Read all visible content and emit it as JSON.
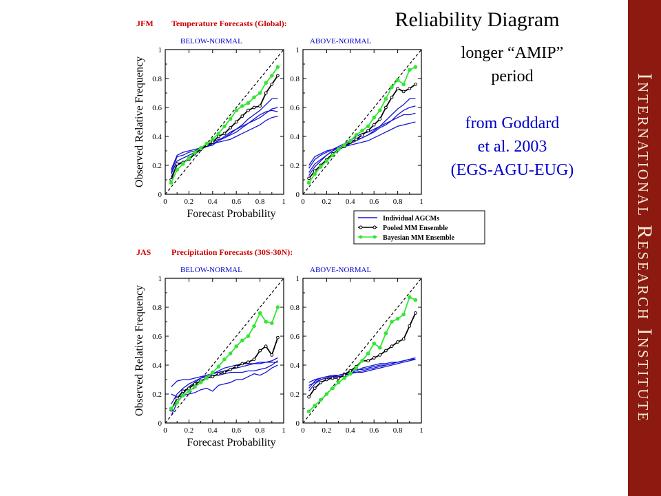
{
  "slide": {
    "title": "Reliability Diagram",
    "note_lines": [
      "longer “AMIP”",
      "period"
    ],
    "source_lines": [
      "from Goddard",
      "et al. 2003",
      "(EGS-AGU-EUG)"
    ],
    "sidebar": "International Research Institute"
  },
  "colors": {
    "individual": "#1414d2",
    "pooled": "#000000",
    "bayesian": "#33e633",
    "diag": "#000000",
    "header_red": "#cc0000",
    "panel_title": "#0000cc",
    "sidebar_bg": "#8c1a10",
    "sidebar_text": "#f2e6d6"
  },
  "legend": {
    "entries": [
      {
        "name": "Individual AGCMs",
        "style": "individual"
      },
      {
        "name": "Pooled MM Ensemble",
        "style": "pooled"
      },
      {
        "name": "Bayesian MM Ensemble",
        "style": "bayesian"
      }
    ]
  },
  "chart_data": [
    {
      "type": "line",
      "season": "JFM",
      "group_title": "Temperature Forecasts (Global):",
      "panel_title": "BELOW-NORMAL",
      "xlabel": "Forecast Probability",
      "ylabel": "Observed Relative Frequency",
      "xlim": [
        0,
        1
      ],
      "ylim": [
        0,
        1
      ],
      "xticks": [
        "0",
        "0.2",
        "0.4",
        "0.6",
        "0.8",
        "1"
      ],
      "yticks": [
        "0",
        "0.2",
        "0.4",
        "0.6",
        "0.8",
        "1"
      ],
      "diagonal": true,
      "x": [
        0.05,
        0.1,
        0.15,
        0.2,
        0.25,
        0.3,
        0.35,
        0.4,
        0.45,
        0.5,
        0.55,
        0.6,
        0.65,
        0.7,
        0.75,
        0.8,
        0.85,
        0.9,
        0.95
      ],
      "series": [
        {
          "name": "Bayesian MM Ensemble",
          "style": "bayesian",
          "values": [
            0.08,
            0.17,
            0.21,
            0.25,
            0.29,
            0.32,
            0.35,
            0.38,
            0.42,
            0.47,
            0.52,
            0.58,
            0.61,
            0.63,
            0.67,
            0.7,
            0.77,
            0.82,
            0.88
          ]
        },
        {
          "name": "Pooled MM Ensemble",
          "style": "pooled",
          "values": [
            0.1,
            0.21,
            0.22,
            0.24,
            0.28,
            0.31,
            0.34,
            0.36,
            0.4,
            0.42,
            0.46,
            0.5,
            0.54,
            0.58,
            0.6,
            0.61,
            0.7,
            0.76,
            0.82
          ]
        },
        {
          "style": "individual",
          "values": [
            0.17,
            0.27,
            0.29,
            0.3,
            0.31,
            0.32,
            0.33,
            0.35,
            0.37,
            0.39,
            0.42,
            0.45,
            0.48,
            0.52,
            0.55,
            0.58,
            0.62,
            0.66,
            0.66
          ]
        },
        {
          "style": "individual",
          "values": [
            0.14,
            0.23,
            0.25,
            0.27,
            0.29,
            0.31,
            0.33,
            0.34,
            0.37,
            0.4,
            0.43,
            0.45,
            0.47,
            0.49,
            0.51,
            0.53,
            0.56,
            0.59,
            0.6
          ]
        },
        {
          "style": "individual",
          "values": [
            0.12,
            0.2,
            0.22,
            0.25,
            0.28,
            0.31,
            0.34,
            0.36,
            0.38,
            0.39,
            0.41,
            0.43,
            0.46,
            0.49,
            0.52,
            0.55,
            0.57,
            0.58,
            0.57
          ]
        },
        {
          "style": "individual",
          "values": [
            0.15,
            0.26,
            0.27,
            0.29,
            0.3,
            0.32,
            0.34,
            0.35,
            0.36,
            0.37,
            0.38,
            0.4,
            0.42,
            0.44,
            0.46,
            0.48,
            0.51,
            0.53,
            0.54
          ]
        }
      ]
    },
    {
      "type": "line",
      "season": "JFM",
      "panel_title": "ABOVE-NORMAL",
      "xlim": [
        0,
        1
      ],
      "ylim": [
        0,
        1
      ],
      "xticks": [
        "0",
        "0.2",
        "0.4",
        "0.6",
        "0.8",
        "1"
      ],
      "yticks": [
        "0",
        "0.2",
        "0.4",
        "0.6",
        "0.8",
        "1"
      ],
      "diagonal": true,
      "x": [
        0.05,
        0.1,
        0.15,
        0.2,
        0.25,
        0.3,
        0.35,
        0.4,
        0.45,
        0.5,
        0.55,
        0.6,
        0.65,
        0.7,
        0.75,
        0.8,
        0.85,
        0.9,
        0.95
      ],
      "series": [
        {
          "name": "Bayesian MM Ensemble",
          "style": "bayesian",
          "values": [
            0.08,
            0.14,
            0.19,
            0.23,
            0.27,
            0.31,
            0.34,
            0.37,
            0.41,
            0.44,
            0.47,
            0.53,
            0.58,
            0.66,
            0.74,
            0.79,
            0.76,
            0.86,
            0.88
          ]
        },
        {
          "name": "Pooled MM Ensemble",
          "style": "pooled",
          "values": [
            0.11,
            0.16,
            0.2,
            0.24,
            0.28,
            0.31,
            0.33,
            0.36,
            0.38,
            0.41,
            0.44,
            0.48,
            0.52,
            0.6,
            0.67,
            0.73,
            0.71,
            0.73,
            0.76
          ]
        },
        {
          "style": "individual",
          "values": [
            0.18,
            0.24,
            0.27,
            0.29,
            0.31,
            0.32,
            0.34,
            0.36,
            0.38,
            0.39,
            0.41,
            0.44,
            0.47,
            0.51,
            0.55,
            0.59,
            0.62,
            0.66,
            0.66
          ]
        },
        {
          "style": "individual",
          "values": [
            0.15,
            0.21,
            0.24,
            0.27,
            0.3,
            0.32,
            0.33,
            0.35,
            0.37,
            0.39,
            0.41,
            0.43,
            0.46,
            0.48,
            0.51,
            0.55,
            0.58,
            0.6,
            0.61
          ]
        },
        {
          "style": "individual",
          "values": [
            0.13,
            0.19,
            0.23,
            0.27,
            0.3,
            0.32,
            0.33,
            0.34,
            0.35,
            0.36,
            0.37,
            0.39,
            0.41,
            0.43,
            0.45,
            0.47,
            0.48,
            0.49,
            0.5
          ]
        },
        {
          "style": "individual",
          "values": [
            0.2,
            0.26,
            0.28,
            0.3,
            0.31,
            0.33,
            0.35,
            0.37,
            0.4,
            0.42,
            0.43,
            0.45,
            0.47,
            0.49,
            0.51,
            0.53,
            0.55,
            0.55,
            0.56
          ]
        }
      ]
    },
    {
      "type": "line",
      "season": "JAS",
      "group_title": "Precipitation Forecasts (30S-30N):",
      "panel_title": "BELOW-NORMAL",
      "xlabel": "Forecast Probability",
      "ylabel": "Observed Relative Frequency",
      "xlim": [
        0,
        1
      ],
      "ylim": [
        0,
        1
      ],
      "xticks": [
        "0",
        "0.2",
        "0.4",
        "0.6",
        "0.8",
        "1"
      ],
      "yticks": [
        "0",
        "0.2",
        "0.4",
        "0.6",
        "0.8",
        "1"
      ],
      "diagonal": true,
      "x": [
        0.05,
        0.1,
        0.15,
        0.2,
        0.25,
        0.3,
        0.35,
        0.4,
        0.45,
        0.5,
        0.55,
        0.6,
        0.65,
        0.7,
        0.75,
        0.8,
        0.85,
        0.9,
        0.95
      ],
      "series": [
        {
          "name": "Bayesian MM Ensemble",
          "style": "bayesian",
          "values": [
            0.1,
            0.14,
            0.19,
            0.22,
            0.25,
            0.28,
            0.31,
            0.35,
            0.39,
            0.44,
            0.48,
            0.53,
            0.57,
            0.6,
            0.67,
            0.76,
            0.7,
            0.69,
            0.8
          ]
        },
        {
          "name": "Pooled MM Ensemble",
          "style": "pooled",
          "values": [
            0.09,
            0.17,
            0.22,
            0.24,
            0.27,
            0.29,
            0.31,
            0.32,
            0.34,
            0.35,
            0.37,
            0.39,
            0.41,
            0.42,
            0.44,
            0.5,
            0.53,
            0.47,
            0.59
          ]
        },
        {
          "style": "individual",
          "values": [
            0.25,
            0.29,
            0.3,
            0.3,
            0.31,
            0.32,
            0.33,
            0.34,
            0.35,
            0.36,
            0.37,
            0.38,
            0.39,
            0.4,
            0.41,
            0.41,
            0.42,
            0.43,
            0.45
          ]
        },
        {
          "style": "individual",
          "values": [
            0.05,
            0.14,
            0.2,
            0.25,
            0.28,
            0.31,
            0.33,
            0.34,
            0.36,
            0.38,
            0.39,
            0.4,
            0.41,
            0.41,
            0.41,
            0.42,
            0.42,
            0.42,
            0.42
          ]
        },
        {
          "style": "individual",
          "values": [
            0.2,
            0.18,
            0.19,
            0.2,
            0.21,
            0.23,
            0.24,
            0.22,
            0.26,
            0.27,
            0.28,
            0.3,
            0.3,
            0.32,
            0.34,
            0.33,
            0.35,
            0.38,
            0.4
          ]
        },
        {
          "style": "individual",
          "values": [
            0.13,
            0.2,
            0.24,
            0.27,
            0.29,
            0.31,
            0.32,
            0.33,
            0.33,
            0.34,
            0.35,
            0.35,
            0.35,
            0.36,
            0.36,
            0.37,
            0.38,
            0.4,
            0.43
          ]
        }
      ]
    },
    {
      "type": "line",
      "season": "JAS",
      "panel_title": "ABOVE-NORMAL",
      "xlim": [
        0,
        1
      ],
      "ylim": [
        0,
        1
      ],
      "xticks": [
        "0",
        "0.2",
        "0.4",
        "0.6",
        "0.8",
        "1"
      ],
      "yticks": [
        "0",
        "0.2",
        "0.4",
        "0.6",
        "0.8",
        "1"
      ],
      "diagonal": true,
      "x": [
        0.05,
        0.1,
        0.15,
        0.2,
        0.25,
        0.3,
        0.35,
        0.4,
        0.45,
        0.5,
        0.55,
        0.6,
        0.65,
        0.7,
        0.75,
        0.8,
        0.85,
        0.9,
        0.95
      ],
      "series": [
        {
          "name": "Bayesian MM Ensemble",
          "style": "bayesian",
          "values": [
            0.08,
            0.12,
            0.16,
            0.2,
            0.24,
            0.28,
            0.31,
            0.34,
            0.38,
            0.43,
            0.48,
            0.55,
            0.52,
            0.62,
            0.7,
            0.72,
            0.75,
            0.87,
            0.85
          ]
        },
        {
          "name": "Pooled MM Ensemble",
          "style": "pooled",
          "values": [
            0.18,
            0.24,
            0.28,
            0.3,
            0.31,
            0.31,
            0.33,
            0.36,
            0.39,
            0.43,
            0.43,
            0.45,
            0.47,
            0.5,
            0.53,
            0.56,
            0.58,
            0.67,
            0.76
          ]
        },
        {
          "style": "individual",
          "values": [
            0.26,
            0.28,
            0.3,
            0.31,
            0.32,
            0.32,
            0.33,
            0.34,
            0.35,
            0.36,
            0.37,
            0.38,
            0.39,
            0.4,
            0.41,
            0.42,
            0.43,
            0.44,
            0.45
          ]
        },
        {
          "style": "individual",
          "values": [
            0.22,
            0.27,
            0.3,
            0.31,
            0.32,
            0.33,
            0.34,
            0.35,
            0.36,
            0.38,
            0.39,
            0.4,
            0.41,
            0.41,
            0.42,
            0.42,
            0.43,
            0.44,
            0.44
          ]
        },
        {
          "style": "individual",
          "values": [
            0.28,
            0.3,
            0.31,
            0.32,
            0.32,
            0.33,
            0.34,
            0.35,
            0.35,
            0.35,
            0.36,
            0.37,
            0.38,
            0.39,
            0.4,
            0.41,
            0.42,
            0.43,
            0.44
          ]
        },
        {
          "style": "individual",
          "values": [
            0.24,
            0.29,
            0.31,
            0.32,
            0.33,
            0.33,
            0.34,
            0.36,
            0.37,
            0.37,
            0.38,
            0.39,
            0.4,
            0.4,
            0.41,
            0.42,
            0.43,
            0.44,
            0.45
          ]
        }
      ]
    }
  ]
}
